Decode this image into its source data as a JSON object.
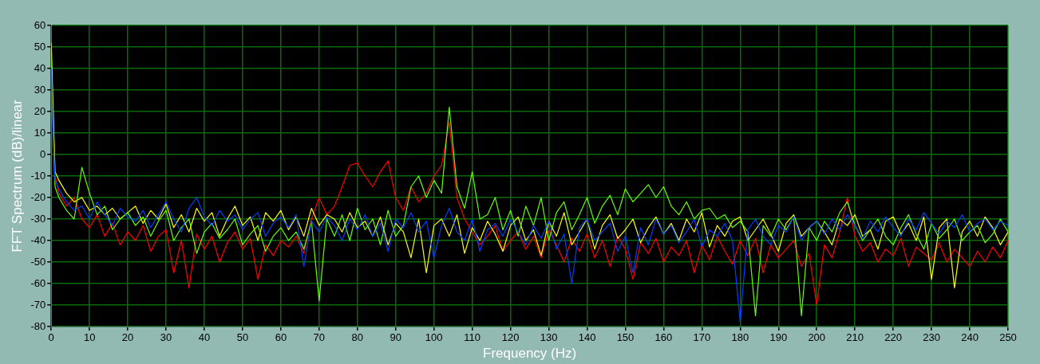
{
  "chart_data": {
    "type": "line",
    "xlabel": "Frequency (Hz)",
    "ylabel": "FFT Spectrum (dB)/linear",
    "grid": true,
    "legend": false,
    "xlim": [
      0,
      250
    ],
    "ylim": [
      -80,
      60
    ],
    "xticks": [
      0,
      10,
      20,
      30,
      40,
      50,
      60,
      70,
      80,
      90,
      100,
      110,
      120,
      130,
      140,
      150,
      160,
      170,
      180,
      190,
      200,
      210,
      220,
      230,
      240,
      250
    ],
    "yticks": [
      -80,
      -70,
      -60,
      -50,
      -40,
      -30,
      -20,
      -10,
      0,
      10,
      20,
      30,
      40,
      50,
      60
    ],
    "x": [
      0,
      0.5,
      1,
      2,
      4,
      6,
      8,
      10,
      12,
      14,
      16,
      18,
      20,
      22,
      24,
      26,
      28,
      30,
      32,
      34,
      36,
      38,
      40,
      42,
      44,
      46,
      48,
      50,
      52,
      54,
      56,
      58,
      60,
      62,
      64,
      66,
      68,
      70,
      72,
      74,
      76,
      78,
      80,
      82,
      84,
      86,
      88,
      90,
      92,
      94,
      96,
      98,
      100,
      102,
      104,
      106,
      108,
      110,
      112,
      114,
      116,
      118,
      120,
      122,
      124,
      126,
      128,
      130,
      132,
      134,
      136,
      138,
      140,
      142,
      144,
      146,
      148,
      150,
      152,
      154,
      156,
      158,
      160,
      162,
      164,
      166,
      168,
      170,
      172,
      174,
      176,
      178,
      180,
      182,
      184,
      186,
      188,
      190,
      192,
      194,
      196,
      198,
      200,
      202,
      204,
      206,
      208,
      210,
      212,
      214,
      216,
      218,
      220,
      222,
      224,
      226,
      228,
      230,
      232,
      234,
      236,
      238,
      240,
      242,
      244,
      246,
      248,
      250
    ],
    "series": [
      {
        "color": "#0040ff",
        "values": [
          40,
          12,
          -12,
          -16,
          -22,
          -26,
          -24,
          -30,
          -22,
          -28,
          -33,
          -25,
          -29,
          -31,
          -26,
          -34,
          -28,
          -22,
          -30,
          -36,
          -25,
          -20,
          -29,
          -33,
          -26,
          -31,
          -28,
          -35,
          -30,
          -27,
          -38,
          -32,
          -29,
          -34,
          -28,
          -52,
          -31,
          -36,
          -29,
          -33,
          -40,
          -30,
          -35,
          -28,
          -38,
          -32,
          -45,
          -30,
          -34,
          -27,
          -36,
          -31,
          -48,
          -33,
          -25,
          -36,
          -40,
          -30,
          -45,
          -35,
          -32,
          -38,
          -30,
          -36,
          -42,
          -33,
          -39,
          -31,
          -44,
          -37,
          -60,
          -34,
          -30,
          -40,
          -36,
          -32,
          -45,
          -38,
          -55,
          -34,
          -42,
          -30,
          -37,
          -33,
          -41,
          -36,
          -30,
          -43,
          -35,
          -38,
          -32,
          -40,
          -78,
          -35,
          -30,
          -38,
          -42,
          -33,
          -36,
          -29,
          -40,
          -34,
          -31,
          -37,
          -30,
          -35,
          -28,
          -33,
          -39,
          -31,
          -36,
          -29,
          -34,
          -38,
          -30,
          -35,
          -27,
          -32,
          -37,
          -31,
          -34,
          -28,
          -36,
          -32,
          -30,
          -35,
          -31,
          -33
        ]
      },
      {
        "color": "#66ff00",
        "values": [
          44,
          10,
          -15,
          -20,
          -26,
          -30,
          -6,
          -18,
          -28,
          -24,
          -35,
          -30,
          -27,
          -33,
          -29,
          -38,
          -31,
          -26,
          -40,
          -34,
          -30,
          -46,
          -36,
          -32,
          -39,
          -35,
          -30,
          -42,
          -37,
          -33,
          -45,
          -38,
          -34,
          -40,
          -36,
          -44,
          -31,
          -68,
          -30,
          -38,
          -28,
          -40,
          -25,
          -35,
          -30,
          -42,
          -26,
          -38,
          -33,
          -15,
          -10,
          -20,
          -12,
          -18,
          22,
          -15,
          -25,
          -8,
          -30,
          -28,
          -20,
          -35,
          -26,
          -38,
          -24,
          -33,
          -20,
          -40,
          -27,
          -22,
          -35,
          -28,
          -20,
          -32,
          -24,
          -19,
          -28,
          -16,
          -22,
          -18,
          -14,
          -20,
          -15,
          -24,
          -28,
          -22,
          -30,
          -26,
          -25,
          -30,
          -28,
          -34,
          -31,
          -36,
          -75,
          -33,
          -38,
          -30,
          -35,
          -29,
          -75,
          -34,
          -40,
          -31,
          -36,
          -27,
          -22,
          -33,
          -40,
          -35,
          -30,
          -38,
          -42,
          -34,
          -28,
          -37,
          -44,
          -32,
          -39,
          -35,
          -30,
          -40,
          -36,
          -33,
          -41,
          -37,
          -30,
          -36
        ]
      },
      {
        "color": "#ffff00",
        "values": [
          52,
          null,
          -8,
          -12,
          -18,
          -22,
          -20,
          -26,
          -24,
          -28,
          -25,
          -30,
          -27,
          -24,
          -32,
          -26,
          -30,
          -23,
          -34,
          -28,
          -36,
          -25,
          -31,
          -27,
          -38,
          -30,
          -24,
          -33,
          -29,
          -40,
          -27,
          -31,
          -26,
          -35,
          -29,
          -38,
          -25,
          -33,
          -28,
          -30,
          -36,
          -27,
          -34,
          -31,
          -38,
          -29,
          -42,
          -32,
          -36,
          -48,
          -30,
          -55,
          -33,
          -30,
          -38,
          -28,
          -46,
          -34,
          -40,
          -31,
          -37,
          -45,
          -33,
          -29,
          -40,
          -35,
          -47,
          -31,
          -38,
          -27,
          -42,
          -36,
          -30,
          -44,
          -33,
          -28,
          -39,
          -35,
          -30,
          -41,
          -34,
          -29,
          -37,
          -32,
          -40,
          -30,
          -36,
          -27,
          -43,
          -33,
          -38,
          -31,
          -29,
          -40,
          -35,
          -30,
          -37,
          -45,
          -32,
          -28,
          -38,
          -34,
          -31,
          -36,
          -42,
          -30,
          -33,
          -28,
          -38,
          -35,
          -44,
          -31,
          -29,
          -37,
          -32,
          -40,
          -29,
          -58,
          -34,
          -30,
          -62,
          -36,
          -31,
          -38,
          -29,
          -34,
          -42,
          -36
        ]
      },
      {
        "color": "#ff0000",
        "values": [
          null,
          20,
          -10,
          -18,
          -24,
          -20,
          -30,
          -34,
          -28,
          -38,
          -32,
          -42,
          -36,
          -40,
          -33,
          -45,
          -38,
          -35,
          -55,
          -40,
          -62,
          -37,
          -44,
          -38,
          -50,
          -41,
          -36,
          -44,
          -39,
          -58,
          -42,
          -47,
          -40,
          -43,
          -38,
          -46,
          -30,
          -20,
          -28,
          -24,
          -15,
          -5,
          -4,
          -10,
          -15,
          -8,
          -3,
          -20,
          -26,
          -15,
          -22,
          -18,
          -10,
          -5,
          15,
          -20,
          -30,
          -36,
          -42,
          -38,
          -33,
          -45,
          -40,
          -36,
          -44,
          -38,
          -48,
          -35,
          -42,
          -50,
          -39,
          -45,
          -37,
          -48,
          -40,
          -52,
          -38,
          -44,
          -58,
          -41,
          -46,
          -39,
          -50,
          -43,
          -47,
          -40,
          -55,
          -42,
          -49,
          -38,
          -45,
          -51,
          -40,
          -47,
          -39,
          -55,
          -42,
          -48,
          -44,
          -40,
          -52,
          -46,
          -70,
          -42,
          -48,
          -36,
          -20,
          -38,
          -45,
          -41,
          -50,
          -44,
          -47,
          -39,
          -52,
          -43,
          -46,
          -49,
          -41,
          -50,
          -44,
          -48,
          -52,
          -45,
          -50,
          -43,
          -48,
          -40
        ]
      }
    ]
  }
}
